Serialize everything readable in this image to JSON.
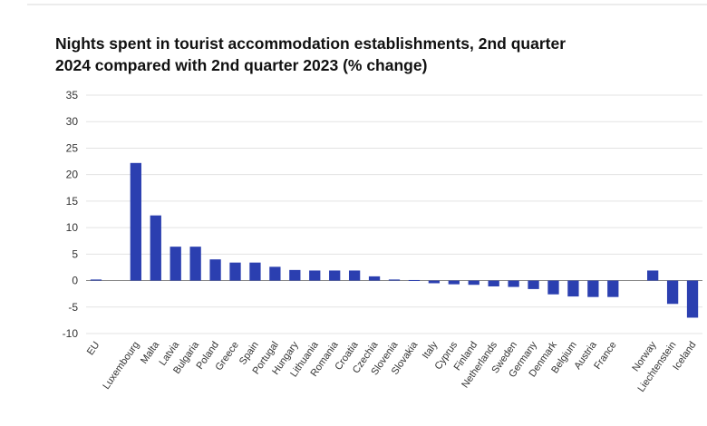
{
  "chart_data": {
    "type": "bar",
    "title_lines": [
      "Nights spent in tourist accommodation establishments, 2nd quarter",
      "2024 compared with 2nd quarter 2023 (% change)"
    ],
    "xlabel": "",
    "ylabel": "",
    "ylim": [
      -10,
      35
    ],
    "yticks": [
      "35",
      "30",
      "25",
      "20",
      "15",
      "10",
      "5",
      "0",
      "-5",
      "-10"
    ],
    "grid": true,
    "bar_color": "#2b3fb0",
    "categories": [
      "EU",
      "",
      "Luxembourg",
      "Malta",
      "Latvia",
      "Bulgaria",
      "Poland",
      "Greece",
      "Spain",
      "Portugal",
      "Hungary",
      "Lithuania",
      "Romania",
      "Croatia",
      "Czechia",
      "Slovenia",
      "Slovakia",
      "Italy",
      "Cyprus",
      "Finland",
      "Netherlands",
      "Sweden",
      "Germany",
      "Denmark",
      "Belgium",
      "Austria",
      "France",
      "",
      "Norway",
      "Liechtenstein",
      "Iceland"
    ],
    "values": [
      0.2,
      null,
      22.2,
      12.3,
      6.4,
      6.4,
      4.0,
      3.4,
      3.4,
      2.6,
      2.0,
      1.9,
      1.9,
      1.9,
      0.8,
      0.2,
      0.1,
      -0.5,
      -0.7,
      -0.8,
      -1.1,
      -1.2,
      -1.6,
      -2.6,
      -3.0,
      -3.1,
      -3.1,
      null,
      1.9,
      -4.4,
      -7.0
    ]
  }
}
